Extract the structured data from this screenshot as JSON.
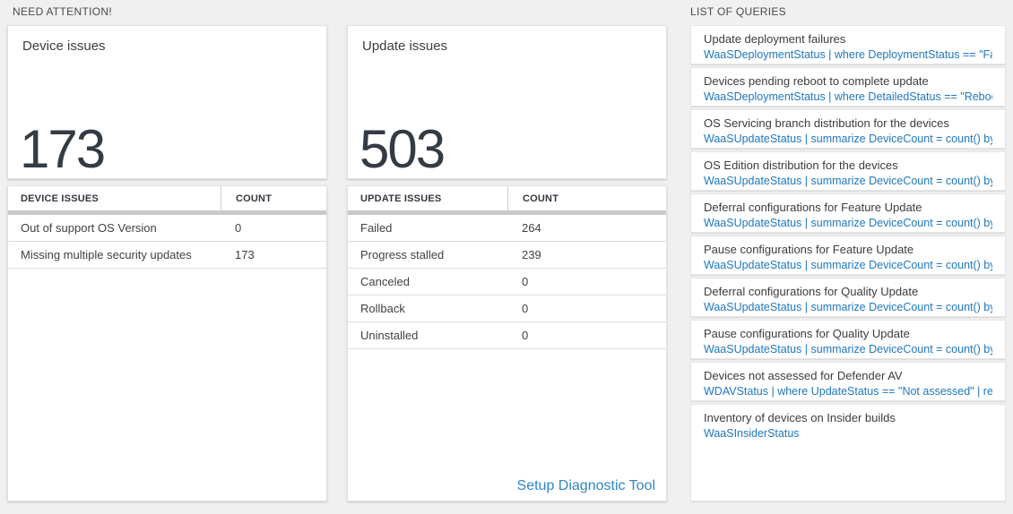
{
  "headings": {
    "need_attention": "NEED ATTENTION!",
    "list_of_queries": "LIST OF QUERIES"
  },
  "device_issues": {
    "title": "Device issues",
    "total": "173",
    "table": {
      "headers": [
        "DEVICE ISSUES",
        "COUNT"
      ],
      "rows": [
        {
          "label": "Out of support OS Version",
          "count": "0"
        },
        {
          "label": "Missing multiple security updates",
          "count": "173"
        }
      ]
    }
  },
  "update_issues": {
    "title": "Update issues",
    "total": "503",
    "table": {
      "headers": [
        "UPDATE ISSUES",
        "COUNT"
      ],
      "rows": [
        {
          "label": "Failed",
          "count": "264"
        },
        {
          "label": "Progress stalled",
          "count": "239"
        },
        {
          "label": "Canceled",
          "count": "0"
        },
        {
          "label": "Rollback",
          "count": "0"
        },
        {
          "label": "Uninstalled",
          "count": "0"
        }
      ]
    },
    "link_label": "Setup Diagnostic Tool"
  },
  "queries": [
    {
      "title": "Update deployment failures",
      "query": "WaaSDeploymentStatus | where DeploymentStatus == \"Failed\" |..."
    },
    {
      "title": "Devices pending reboot to complete update",
      "query": "WaaSDeploymentStatus | where DetailedStatus == \"Reboot pend..."
    },
    {
      "title": "OS Servicing branch distribution for the devices",
      "query": "WaaSUpdateStatus | summarize DeviceCount = count() by OSSer..."
    },
    {
      "title": "OS Edition distribution for the devices",
      "query": "WaaSUpdateStatus | summarize DeviceCount = count() by OSEdit..."
    },
    {
      "title": "Deferral configurations for Feature Update",
      "query": "WaaSUpdateStatus | summarize DeviceCount = count() by Featur..."
    },
    {
      "title": "Pause configurations for Feature Update",
      "query": "WaaSUpdateStatus | summarize DeviceCount = count() by Featur..."
    },
    {
      "title": "Deferral configurations for Quality Update",
      "query": "WaaSUpdateStatus | summarize DeviceCount = count() by Qualit..."
    },
    {
      "title": "Pause configurations for Quality Update",
      "query": "WaaSUpdateStatus | summarize DeviceCount = count() by Qualit..."
    },
    {
      "title": "Devices not assessed for Defender AV",
      "query": "WDAVStatus | where UpdateStatus == \"Not assessed\" | render ta..."
    },
    {
      "title": "Inventory of devices on Insider builds",
      "query": "WaaSInsiderStatus"
    }
  ],
  "colors": {
    "accent_blue": "#1f77bf",
    "link_blue": "#2e86c8",
    "big_number": "#333b45",
    "header_bar_gray": "#c7c9cb",
    "page_background": "#f0f0f0"
  }
}
